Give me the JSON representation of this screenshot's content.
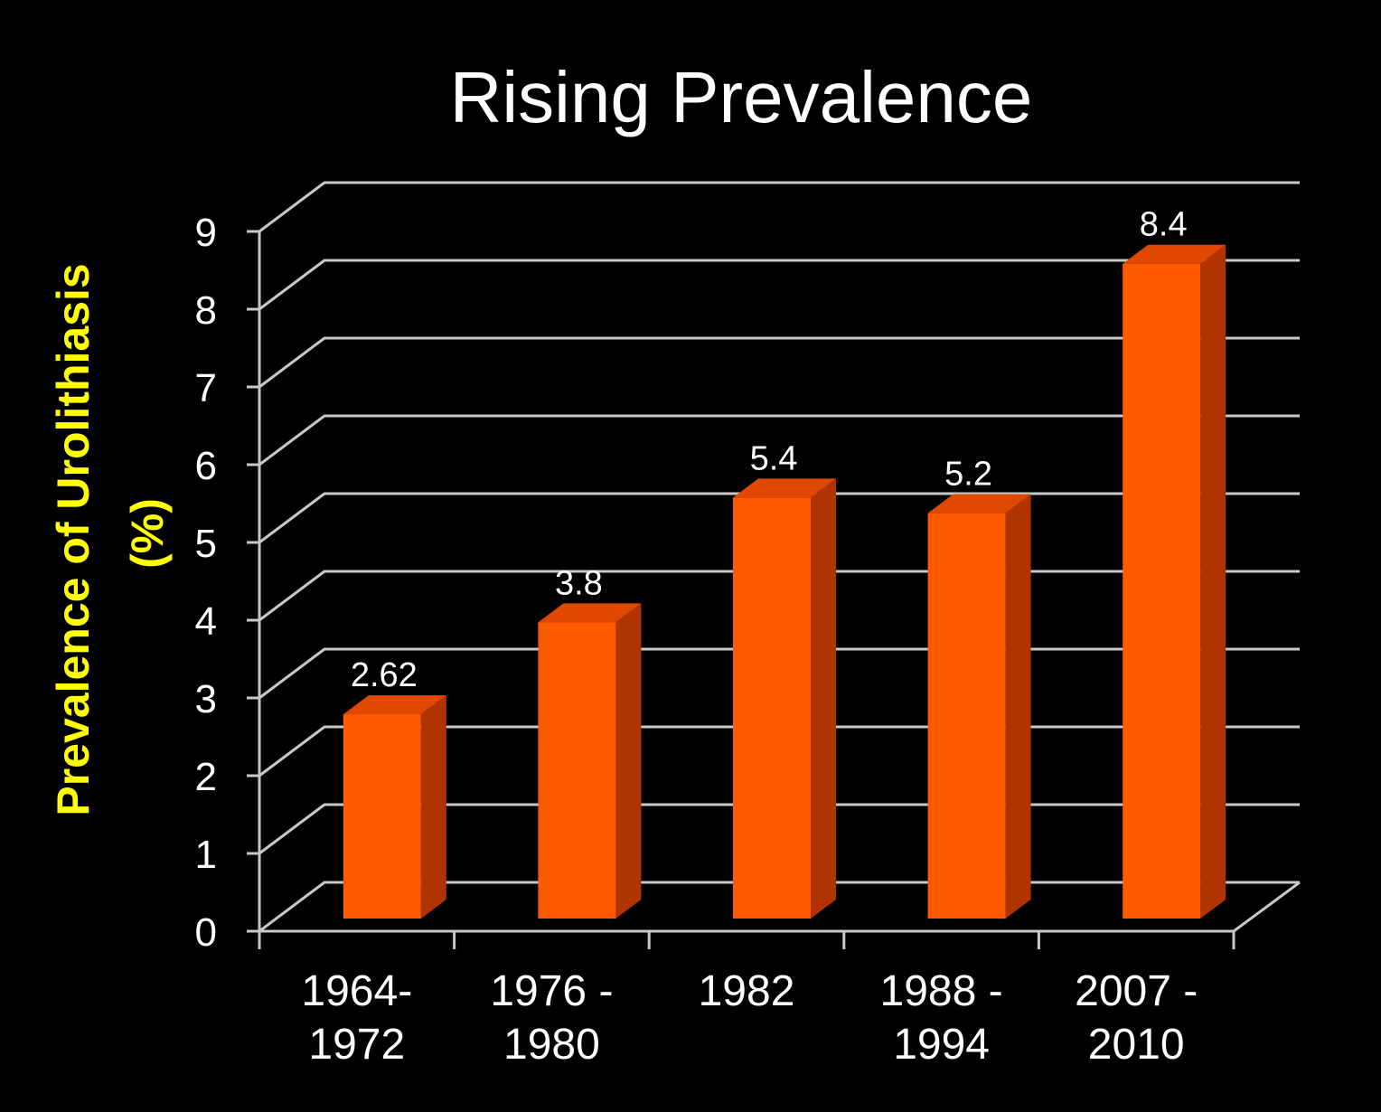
{
  "chart_data": {
    "type": "bar",
    "title": "Rising Prevalence",
    "ylabel": [
      "Prevalence of Urolithiasis",
      "(%)"
    ],
    "xlabel": "",
    "categories": [
      [
        "1964-",
        "1972"
      ],
      [
        "1976 -",
        "1980"
      ],
      [
        "1982"
      ],
      [
        "1988 -",
        "1994"
      ],
      [
        "2007 -",
        "2010"
      ]
    ],
    "values": [
      2.62,
      3.8,
      5.4,
      5.2,
      8.4
    ],
    "data_labels": [
      "2.62",
      "3.8",
      "5.4",
      "5.2",
      "8.4"
    ],
    "yticks": [
      0,
      1,
      2,
      3,
      4,
      5,
      6,
      7,
      8,
      9
    ],
    "ylim": [
      0,
      9
    ],
    "grid": true,
    "legend": "none",
    "style": "3d",
    "colors": {
      "bar_front": "#ff5a00",
      "bar_top": "#e04800",
      "bar_side": "#b03400",
      "title": "#ffffff",
      "ylabel": "#ffff00",
      "grid": "#c8c8c8",
      "background": "#000000"
    }
  }
}
